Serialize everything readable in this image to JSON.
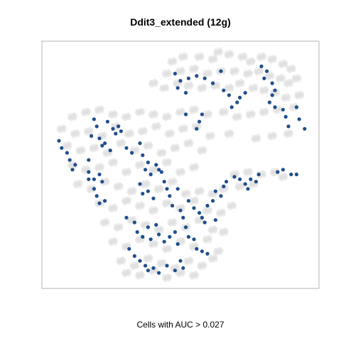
{
  "chart_data": {
    "type": "scatter",
    "title": "Ddit3_extended (12g)",
    "xlabel": "Cells with AUC > 0.027",
    "ylabel": "",
    "xlim": [
      0,
      100
    ],
    "ylim": [
      0,
      100
    ],
    "grid": false,
    "legend": "none",
    "axes_visible": false,
    "colors": {
      "background_points": "#dcdcdc",
      "highlight_points": "#1f4e8c",
      "frame": "#b3b3b3"
    },
    "series": [
      {
        "role": "all-cells",
        "points": [
          [
            47,
            93
          ],
          [
            51,
            95
          ],
          [
            57,
            95
          ],
          [
            62,
            94
          ],
          [
            64,
            97
          ],
          [
            68,
            96
          ],
          [
            73,
            95
          ],
          [
            76,
            93
          ],
          [
            80,
            95
          ],
          [
            84,
            94
          ],
          [
            88,
            92
          ],
          [
            91,
            90
          ],
          [
            45,
            88
          ],
          [
            50,
            89
          ],
          [
            55,
            90
          ],
          [
            60,
            88
          ],
          [
            65,
            89
          ],
          [
            70,
            89
          ],
          [
            75,
            88
          ],
          [
            79,
            89
          ],
          [
            83,
            87
          ],
          [
            87,
            86
          ],
          [
            90,
            84
          ],
          [
            93,
            86
          ],
          [
            40,
            84
          ],
          [
            44,
            82
          ],
          [
            49,
            84
          ],
          [
            53,
            83
          ],
          [
            58,
            82
          ],
          [
            63,
            83
          ],
          [
            68,
            82
          ],
          [
            72,
            84
          ],
          [
            77,
            82
          ],
          [
            81,
            81
          ],
          [
            85,
            80
          ],
          [
            89,
            78
          ],
          [
            94,
            79
          ],
          [
            10,
            70
          ],
          [
            15,
            72
          ],
          [
            20,
            73
          ],
          [
            25,
            71
          ],
          [
            30,
            70
          ],
          [
            35,
            72
          ],
          [
            40,
            71
          ],
          [
            45,
            70
          ],
          [
            50,
            72
          ],
          [
            55,
            73
          ],
          [
            60,
            71
          ],
          [
            66,
            72
          ],
          [
            71,
            70
          ],
          [
            76,
            71
          ],
          [
            81,
            72
          ],
          [
            86,
            73
          ],
          [
            92,
            74
          ],
          [
            6,
            65
          ],
          [
            11,
            63
          ],
          [
            16,
            64
          ],
          [
            21,
            62
          ],
          [
            26,
            66
          ],
          [
            31,
            63
          ],
          [
            36,
            64
          ],
          [
            41,
            66
          ],
          [
            46,
            63
          ],
          [
            51,
            65
          ],
          [
            56,
            66
          ],
          [
            61,
            62
          ],
          [
            68,
            63
          ],
          [
            78,
            61
          ],
          [
            84,
            62
          ],
          [
            90,
            63
          ],
          [
            8,
            58
          ],
          [
            13,
            56
          ],
          [
            18,
            57
          ],
          [
            23,
            55
          ],
          [
            28,
            59
          ],
          [
            33,
            56
          ],
          [
            38,
            58
          ],
          [
            43,
            55
          ],
          [
            48,
            57
          ],
          [
            53,
            59
          ],
          [
            58,
            56
          ],
          [
            10,
            50
          ],
          [
            15,
            48
          ],
          [
            20,
            49
          ],
          [
            25,
            51
          ],
          [
            30,
            47
          ],
          [
            35,
            50
          ],
          [
            40,
            48
          ],
          [
            45,
            51
          ],
          [
            50,
            47
          ],
          [
            55,
            49
          ],
          [
            70,
            46
          ],
          [
            75,
            47
          ],
          [
            80,
            46
          ],
          [
            85,
            47
          ],
          [
            88,
            45
          ],
          [
            12,
            42
          ],
          [
            17,
            40
          ],
          [
            22,
            43
          ],
          [
            27,
            41
          ],
          [
            32,
            39
          ],
          [
            37,
            42
          ],
          [
            42,
            40
          ],
          [
            47,
            43
          ],
          [
            52,
            38
          ],
          [
            57,
            39
          ],
          [
            62,
            38
          ],
          [
            66,
            40
          ],
          [
            72,
            41
          ],
          [
            77,
            42
          ],
          [
            20,
            34
          ],
          [
            25,
            32
          ],
          [
            30,
            35
          ],
          [
            35,
            33
          ],
          [
            40,
            31
          ],
          [
            45,
            34
          ],
          [
            50,
            32
          ],
          [
            55,
            35
          ],
          [
            60,
            31
          ],
          [
            65,
            30
          ],
          [
            69,
            33
          ],
          [
            22,
            26
          ],
          [
            27,
            24
          ],
          [
            32,
            27
          ],
          [
            37,
            25
          ],
          [
            42,
            23
          ],
          [
            47,
            26
          ],
          [
            52,
            24
          ],
          [
            57,
            27
          ],
          [
            62,
            23
          ],
          [
            66,
            22
          ],
          [
            25,
            18
          ],
          [
            30,
            16
          ],
          [
            35,
            19
          ],
          [
            40,
            17
          ],
          [
            45,
            15
          ],
          [
            50,
            18
          ],
          [
            55,
            16
          ],
          [
            60,
            19
          ],
          [
            64,
            14
          ],
          [
            28,
            10
          ],
          [
            33,
            8
          ],
          [
            38,
            11
          ],
          [
            43,
            9
          ],
          [
            48,
            7
          ],
          [
            53,
            10
          ],
          [
            58,
            8
          ],
          [
            62,
            11
          ],
          [
            30,
            5
          ],
          [
            35,
            4
          ],
          [
            40,
            6
          ],
          [
            45,
            3
          ],
          [
            50,
            5
          ],
          [
            55,
            4
          ]
        ]
      },
      {
        "role": "AUC > 0.027",
        "points": [
          [
            48,
            88
          ],
          [
            50,
            85
          ],
          [
            53,
            86
          ],
          [
            49,
            82
          ],
          [
            52,
            80
          ],
          [
            56,
            87
          ],
          [
            59,
            86
          ],
          [
            62,
            84
          ],
          [
            65,
            89
          ],
          [
            66,
            81
          ],
          [
            68,
            79
          ],
          [
            69,
            74
          ],
          [
            72,
            78
          ],
          [
            74,
            80
          ],
          [
            71,
            76
          ],
          [
            80,
            91
          ],
          [
            82,
            89
          ],
          [
            81,
            86
          ],
          [
            84,
            84
          ],
          [
            85,
            81
          ],
          [
            84,
            79
          ],
          [
            83,
            76
          ],
          [
            85,
            74
          ],
          [
            88,
            73
          ],
          [
            89,
            70
          ],
          [
            93,
            74
          ],
          [
            94,
            69
          ],
          [
            90,
            66
          ],
          [
            96,
            65
          ],
          [
            57,
            68
          ],
          [
            56,
            65
          ],
          [
            58,
            71
          ],
          [
            52,
            71
          ],
          [
            18,
            69
          ],
          [
            19,
            66
          ],
          [
            17,
            62
          ],
          [
            20,
            61
          ],
          [
            21,
            58
          ],
          [
            22,
            59
          ],
          [
            23,
            68
          ],
          [
            25,
            65
          ],
          [
            26,
            63
          ],
          [
            27,
            66
          ],
          [
            28,
            64
          ],
          [
            24,
            56
          ],
          [
            30,
            57
          ],
          [
            32,
            55
          ],
          [
            35,
            59
          ],
          [
            36,
            54
          ],
          [
            38,
            51
          ],
          [
            37,
            48
          ],
          [
            39,
            46
          ],
          [
            41,
            50
          ],
          [
            42,
            48
          ],
          [
            43,
            47
          ],
          [
            5,
            60
          ],
          [
            6,
            57
          ],
          [
            8,
            55
          ],
          [
            9,
            52
          ],
          [
            10,
            48
          ],
          [
            11,
            50
          ],
          [
            16,
            52
          ],
          [
            16,
            47
          ],
          [
            16,
            44
          ],
          [
            18,
            44
          ],
          [
            20,
            46
          ],
          [
            21,
            43
          ],
          [
            18,
            40
          ],
          [
            19,
            37
          ],
          [
            20,
            34
          ],
          [
            22,
            35
          ],
          [
            35,
            42
          ],
          [
            36,
            38
          ],
          [
            38,
            39
          ],
          [
            40,
            36
          ],
          [
            44,
            43
          ],
          [
            45,
            40
          ],
          [
            46,
            37
          ],
          [
            49,
            40
          ],
          [
            47,
            33
          ],
          [
            50,
            31
          ],
          [
            51,
            28
          ],
          [
            53,
            35
          ],
          [
            55,
            32
          ],
          [
            57,
            30
          ],
          [
            58,
            28
          ],
          [
            59,
            26
          ],
          [
            60,
            33
          ],
          [
            62,
            35
          ],
          [
            63,
            39
          ],
          [
            63,
            27
          ],
          [
            65,
            37
          ],
          [
            66,
            41
          ],
          [
            67,
            43
          ],
          [
            70,
            45
          ],
          [
            72,
            44
          ],
          [
            74,
            42
          ],
          [
            75,
            40
          ],
          [
            76,
            44
          ],
          [
            79,
            46
          ],
          [
            78,
            43
          ],
          [
            86,
            47
          ],
          [
            88,
            48
          ],
          [
            91,
            46
          ],
          [
            93,
            46
          ],
          [
            30,
            28
          ],
          [
            33,
            26
          ],
          [
            34,
            22
          ],
          [
            36,
            20
          ],
          [
            38,
            24
          ],
          [
            39,
            19
          ],
          [
            41,
            25
          ],
          [
            42,
            21
          ],
          [
            44,
            18
          ],
          [
            46,
            20
          ],
          [
            48,
            22
          ],
          [
            49,
            17
          ],
          [
            52,
            24
          ],
          [
            53,
            20
          ],
          [
            55,
            19
          ],
          [
            56,
            15
          ],
          [
            58,
            14
          ],
          [
            60,
            13
          ],
          [
            31,
            15
          ],
          [
            33,
            12
          ],
          [
            35,
            10
          ],
          [
            37,
            8
          ],
          [
            38,
            6
          ],
          [
            40,
            7
          ],
          [
            42,
            5
          ],
          [
            45,
            8
          ],
          [
            48,
            6
          ],
          [
            50,
            10
          ],
          [
            51,
            7
          ]
        ]
      }
    ]
  }
}
